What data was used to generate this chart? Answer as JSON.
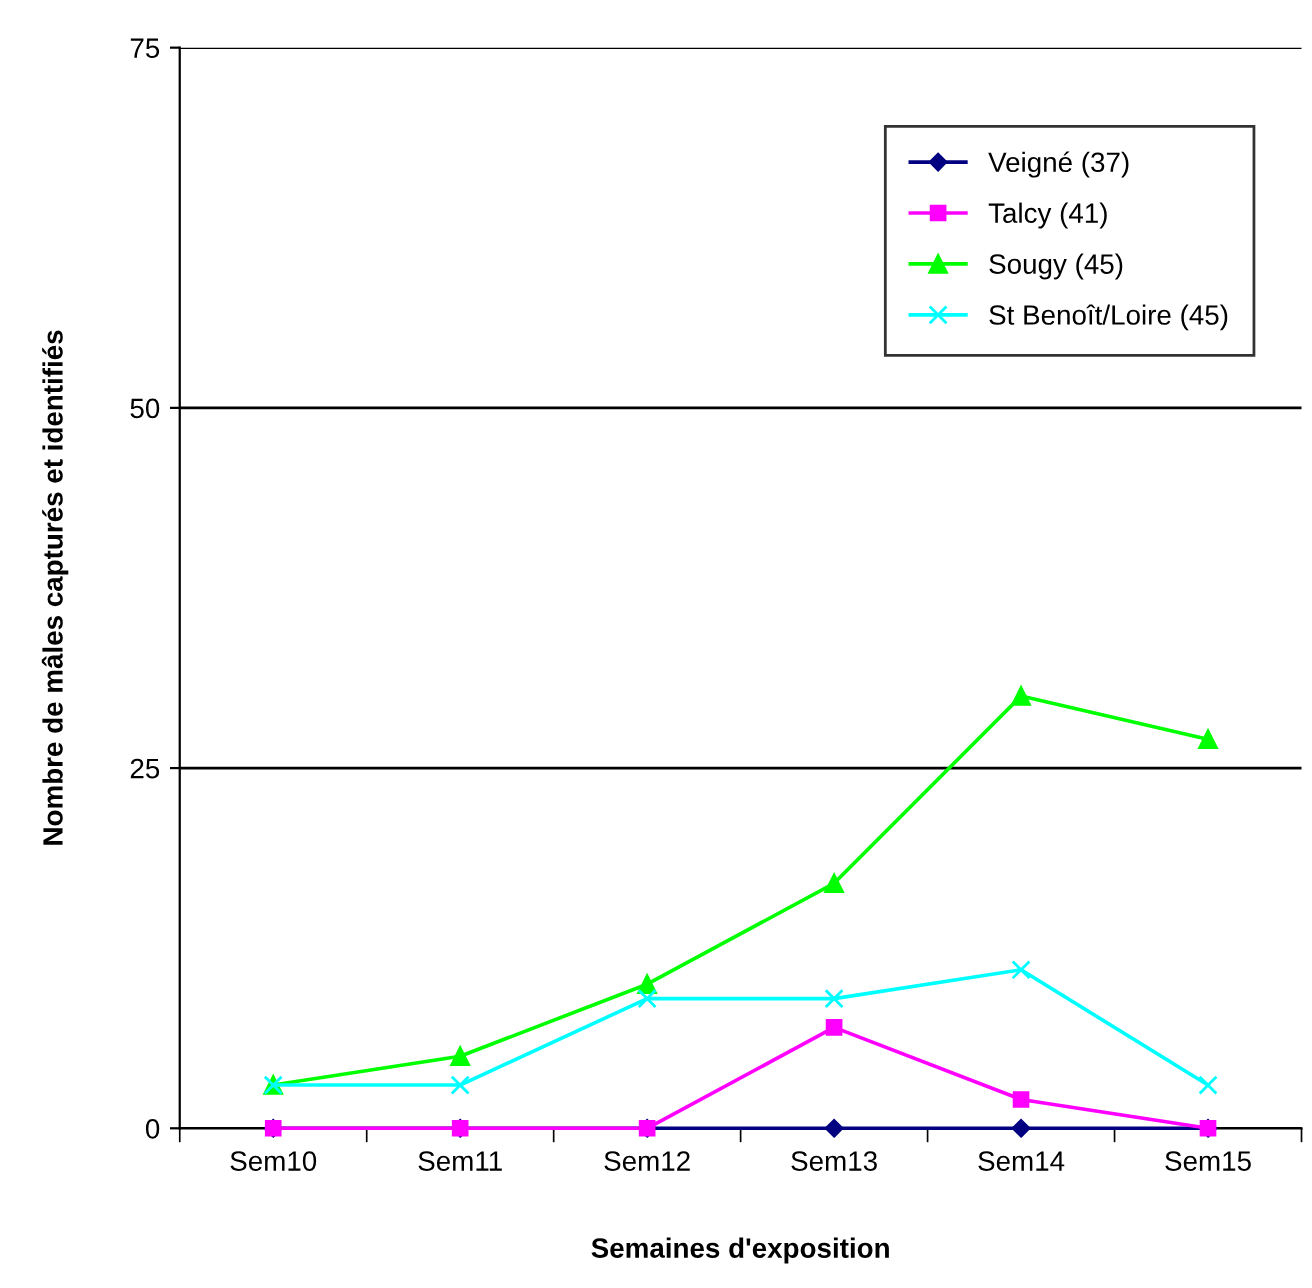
{
  "chart_data": {
    "type": "line",
    "xlabel": "Semaines d'exposition",
    "ylabel": "Nombre de mâles capturés et identifiés",
    "categories": [
      "Sem10",
      "Sem11",
      "Sem12",
      "Sem13",
      "Sem14",
      "Sem15"
    ],
    "series": [
      {
        "name": "Veigné (37)",
        "color": "#000080",
        "marker": "diamond",
        "values": [
          0,
          0,
          0,
          0,
          0,
          0
        ]
      },
      {
        "name": "Talcy (41)",
        "color": "#ff00ff",
        "marker": "square",
        "values": [
          0,
          0,
          0,
          7,
          2,
          0
        ]
      },
      {
        "name": "Sougy (45)",
        "color": "#00ff00",
        "marker": "triangle",
        "values": [
          3,
          5,
          10,
          17,
          30,
          27
        ]
      },
      {
        "name": "St Benoît/Loire (45)",
        "color": "#00ffff",
        "marker": "cross",
        "values": [
          3,
          3,
          9,
          9,
          11,
          3
        ]
      }
    ],
    "ylim": [
      0,
      75
    ],
    "yticks": [
      0,
      25,
      50,
      75
    ],
    "grid": "y",
    "legend": "top right",
    "line_style": "solid"
  }
}
